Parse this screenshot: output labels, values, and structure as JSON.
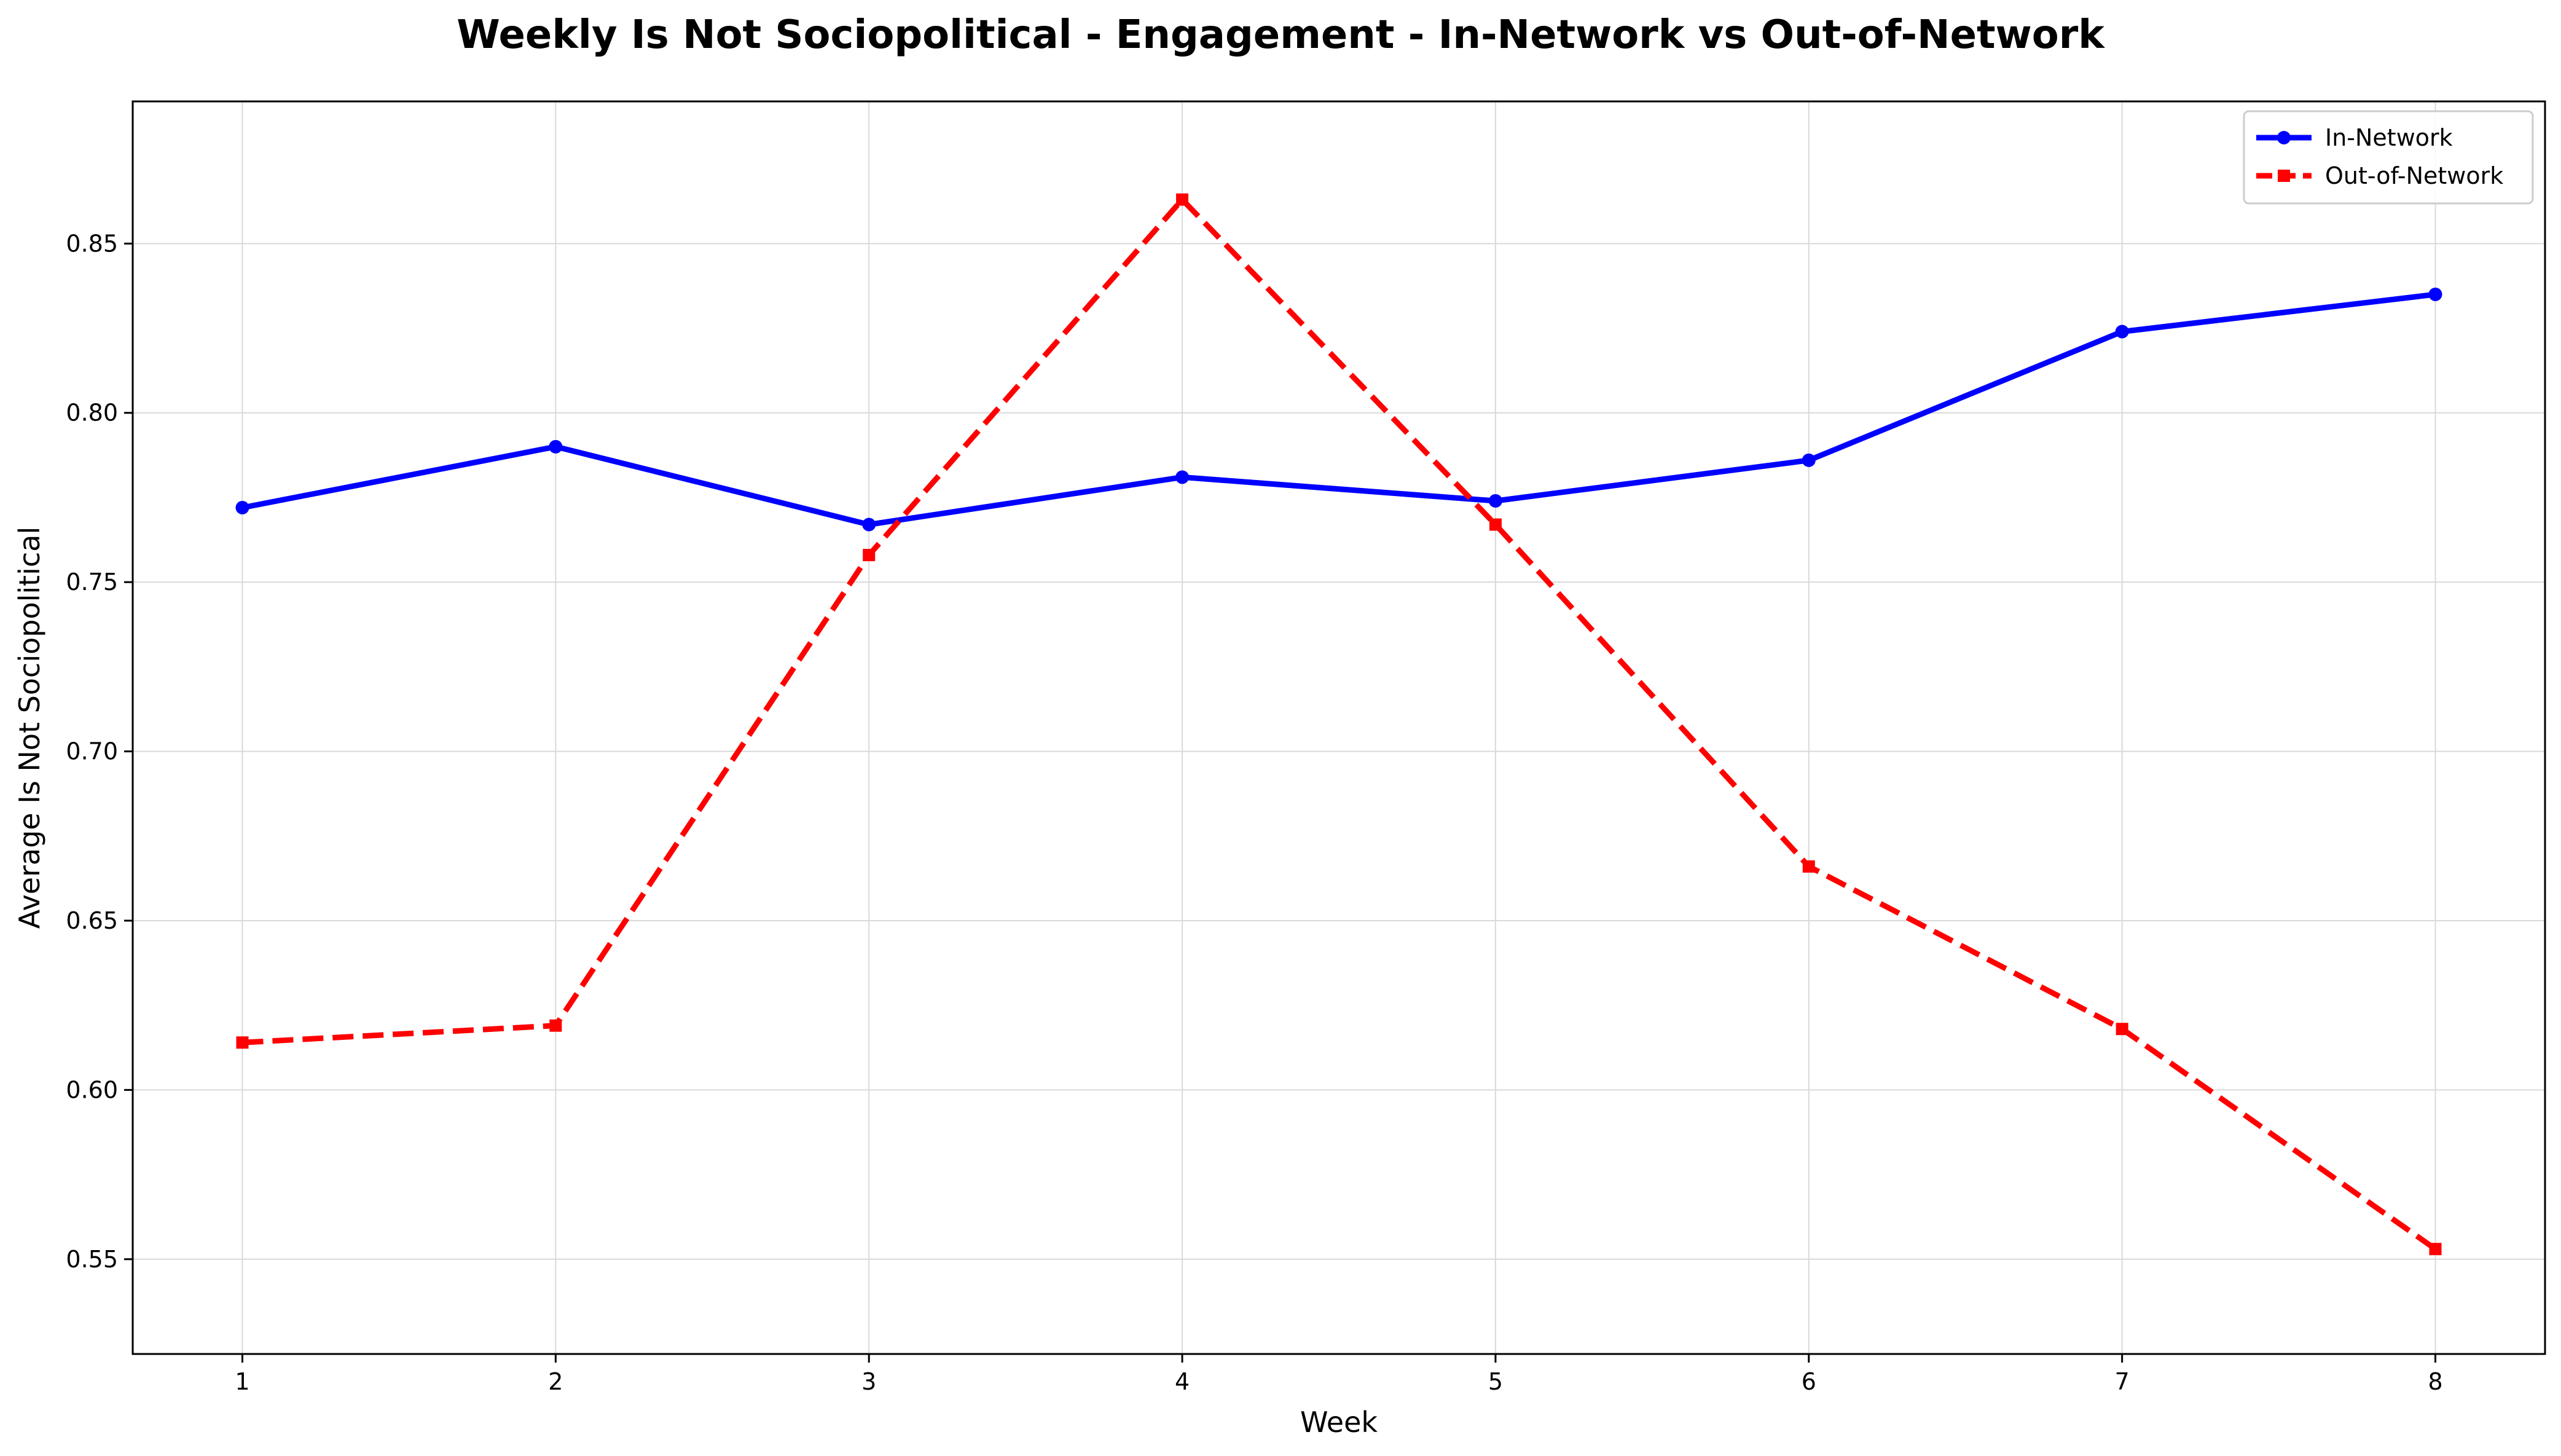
{
  "chart_data": {
    "type": "line",
    "title": "Weekly Is Not Sociopolitical - Engagement - In-Network vs Out-of-Network",
    "xlabel": "Week",
    "ylabel": "Average Is Not Sociopolitical",
    "x": [
      1,
      2,
      3,
      4,
      5,
      6,
      7,
      8
    ],
    "x_tick_labels": [
      "1",
      "2",
      "3",
      "4",
      "5",
      "6",
      "7",
      "8"
    ],
    "y_ticks": [
      0.55,
      0.6,
      0.65,
      0.7,
      0.75,
      0.8,
      0.85
    ],
    "y_tick_labels": [
      "0.55",
      "0.60",
      "0.65",
      "0.70",
      "0.75",
      "0.80",
      "0.85"
    ],
    "xlim": [
      0.65,
      8.35
    ],
    "ylim": [
      0.522,
      0.892
    ],
    "grid": true,
    "legend_position": "top-right",
    "series": [
      {
        "name": "In-Network",
        "color": "#0000ff",
        "line_style": "solid",
        "marker": "circle",
        "values": [
          0.772,
          0.79,
          0.767,
          0.781,
          0.774,
          0.786,
          0.824,
          0.835
        ]
      },
      {
        "name": "Out-of-Network",
        "color": "#ff0000",
        "line_style": "dashed",
        "marker": "square",
        "values": [
          0.614,
          0.619,
          0.758,
          0.863,
          0.767,
          0.666,
          0.618,
          0.553
        ]
      }
    ]
  }
}
